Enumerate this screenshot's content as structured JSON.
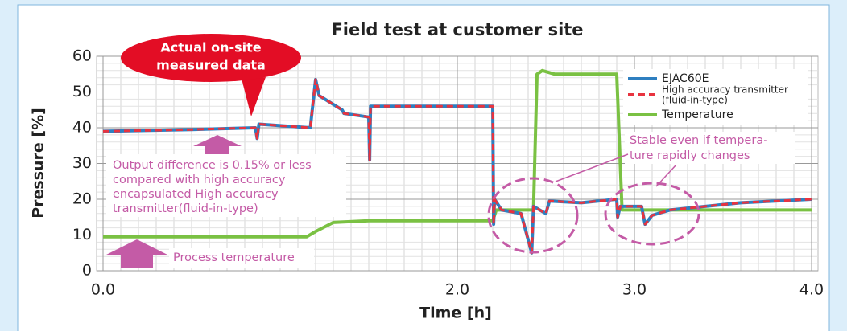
{
  "chart_data": {
    "type": "line",
    "title": "Field test at customer site",
    "xlabel": "Time [h]",
    "ylabel": "Pressure [%]",
    "xlim": [
      0,
      4
    ],
    "ylim": [
      0,
      60
    ],
    "xticks": [
      {
        "value": 0,
        "label": "0.0"
      },
      {
        "value": 2,
        "label": "2.0"
      },
      {
        "value": 3,
        "label": "3.0"
      },
      {
        "value": 4,
        "label": "4.0"
      }
    ],
    "yticks": [
      0,
      10,
      20,
      30,
      40,
      50,
      60
    ],
    "grid": true,
    "minor_grid": {
      "x": 0.1,
      "y": 2
    },
    "legend": "upper right",
    "series": [
      {
        "name": "EJAC60E",
        "color": "#2e7fc0",
        "dash": false,
        "x": [
          0,
          0.5,
          0.86,
          0.87,
          0.88,
          1.17,
          1.2,
          1.22,
          1.35,
          1.36,
          1.5,
          1.505,
          1.51,
          2.2,
          2.205,
          2.21,
          2.25,
          2.36,
          2.42,
          2.43,
          2.5,
          2.52,
          2.7,
          2.9,
          2.905,
          2.92,
          3.04,
          3.06,
          3.1,
          3.2,
          3.4,
          3.6,
          4.0
        ],
        "values": [
          39,
          39.5,
          40,
          37,
          41,
          40,
          53.5,
          49,
          45,
          44,
          43,
          31,
          46,
          46,
          13,
          20,
          17,
          16,
          5,
          18,
          16,
          19.5,
          19,
          20,
          15,
          18,
          18,
          13,
          15.5,
          17,
          18,
          19,
          20
        ]
      },
      {
        "name": "High accuracy transmitter",
        "name_line2": "(fluid-in-type)",
        "color": "#e8333f",
        "dash": true,
        "x": [
          0,
          0.5,
          0.86,
          0.87,
          0.88,
          1.17,
          1.2,
          1.22,
          1.35,
          1.36,
          1.5,
          1.505,
          1.51,
          2.2,
          2.205,
          2.21,
          2.25,
          2.36,
          2.42,
          2.43,
          2.5,
          2.52,
          2.7,
          2.9,
          2.905,
          2.92,
          3.04,
          3.06,
          3.1,
          3.2,
          3.4,
          3.6,
          4.0
        ],
        "values": [
          39,
          39.5,
          40,
          37,
          41,
          40,
          53.5,
          49,
          45,
          44,
          43,
          31,
          46,
          46,
          13,
          20,
          17,
          16,
          5,
          18,
          16,
          19.5,
          19,
          20,
          15,
          18,
          18,
          13,
          15.5,
          17,
          18,
          19,
          20
        ]
      },
      {
        "name": "Temperature",
        "color": "#7ac143",
        "dash": false,
        "x": [
          0,
          1.15,
          1.2,
          1.3,
          1.5,
          2.2,
          2.22,
          2.43,
          2.45,
          2.48,
          2.55,
          2.9,
          2.93,
          4.0
        ],
        "values": [
          9.5,
          9.5,
          11,
          13.5,
          14,
          14,
          17,
          17,
          55,
          56,
          55,
          55,
          17,
          17
        ]
      }
    ],
    "annotations": {
      "bubble": [
        "Actual on-site",
        "measured data"
      ],
      "output_note": [
        "Output difference is 0.15% or less",
        "compared with high accuracy",
        "encapsulated High accuracy",
        "transmitter(fluid-in-type)"
      ],
      "process": "Process temperature",
      "stable": [
        "Stable even if tempera-",
        "ture rapidly  changes"
      ]
    }
  }
}
